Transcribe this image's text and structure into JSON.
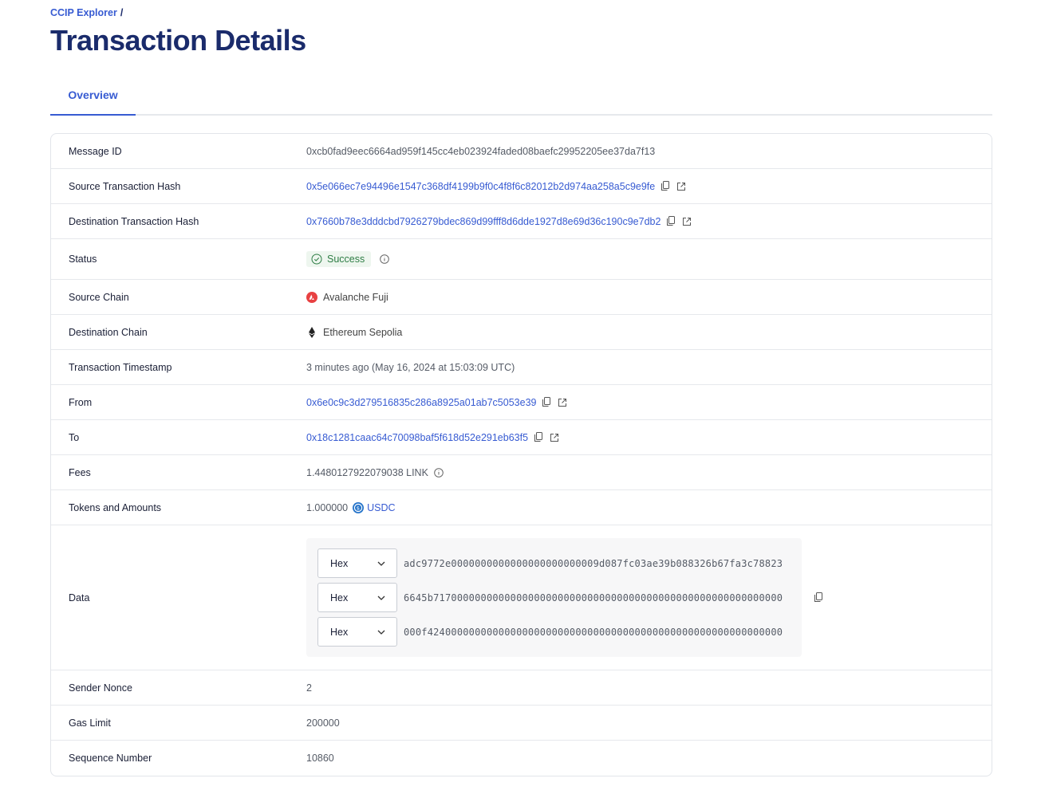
{
  "breadcrumb": {
    "root": "CCIP Explorer",
    "separator": "/"
  },
  "title": "Transaction Details",
  "tabs": [
    {
      "label": "Overview",
      "active": true
    }
  ],
  "details": {
    "message_id": {
      "label": "Message ID",
      "value": "0xcb0fad9eec6664ad959f145cc4eb023924faded08baefc29952205ee37da7f13"
    },
    "source_tx": {
      "label": "Source Transaction Hash",
      "value": "0x5e066ec7e94496e1547c368df4199b9f0c4f8f6c82012b2d974aa258a5c9e9fe"
    },
    "dest_tx": {
      "label": "Destination Transaction Hash",
      "value": "0x7660b78e3dddcbd7926279bdec869d99fff8d6dde1927d8e69d36c190c9e7db2"
    },
    "status": {
      "label": "Status",
      "value": "Success",
      "color": "#2e7d45"
    },
    "source_chain": {
      "label": "Source Chain",
      "value": "Avalanche Fuji",
      "icon": "avalanche-icon"
    },
    "dest_chain": {
      "label": "Destination Chain",
      "value": "Ethereum Sepolia",
      "icon": "ethereum-icon"
    },
    "timestamp": {
      "label": "Transaction Timestamp",
      "value": "3 minutes ago (May 16, 2024 at 15:03:09 UTC)"
    },
    "from": {
      "label": "From",
      "value": "0x6e0c9c3d279516835c286a8925a01ab7c5053e39"
    },
    "to": {
      "label": "To",
      "value": "0x18c1281caac64c70098baf5f618d52e291eb63f5"
    },
    "fees": {
      "label": "Fees",
      "value": "1.4480127922079038 LINK"
    },
    "tokens": {
      "label": "Tokens and Amounts",
      "amount": "1.000000",
      "token": "USDC"
    },
    "data": {
      "label": "Data",
      "lines": [
        {
          "format": "Hex",
          "value": "adc9772e0000000000000000000000009d087fc03ae39b088326b67fa3c78823"
        },
        {
          "format": "Hex",
          "value": "6645b71700000000000000000000000000000000000000000000000000000000"
        },
        {
          "format": "Hex",
          "value": "000f424000000000000000000000000000000000000000000000000000000000"
        }
      ]
    },
    "nonce": {
      "label": "Sender Nonce",
      "value": "2"
    },
    "gas_limit": {
      "label": "Gas Limit",
      "value": "200000"
    },
    "sequence": {
      "label": "Sequence Number",
      "value": "10860"
    }
  },
  "colors": {
    "accent": "#375bd2",
    "title": "#1a2b6b",
    "success": "#2e7d45",
    "avalanche": "#e84142"
  }
}
